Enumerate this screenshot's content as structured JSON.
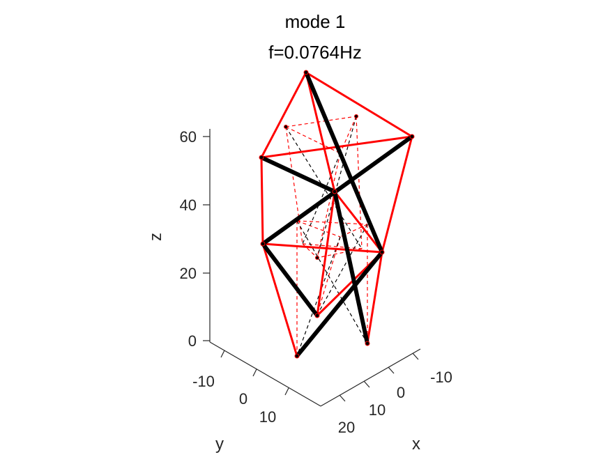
{
  "chart_data": {
    "type": "3d-line",
    "title": [
      "mode 1",
      "f=0.0764Hz"
    ],
    "xlabel": "x",
    "ylabel": "y",
    "zlabel": "z",
    "x_ticks": [
      "-10",
      "0",
      "10",
      "20"
    ],
    "y_ticks": [
      "-10",
      "0",
      "10"
    ],
    "z_ticks": [
      "0",
      "20",
      "40",
      "60"
    ],
    "colors": {
      "struts_deformed": "#000000",
      "cables_deformed": "#ff0000",
      "struts_undeformed": "#000000",
      "cables_undeformed": "#ff0000",
      "axis": "#262626"
    }
  }
}
